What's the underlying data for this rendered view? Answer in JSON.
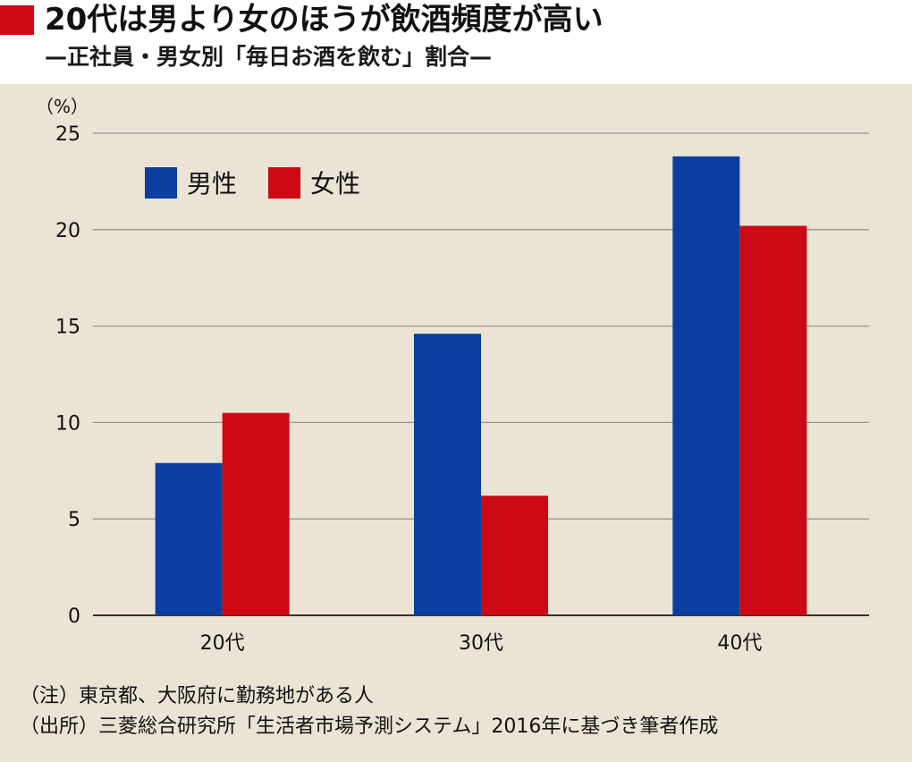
{
  "title": "20代は男より女のほうが飲酒頻度が高い",
  "subtitle": "—正社員・男女別「毎日お酒を飲む」割合—",
  "colors": {
    "accent": "#cc0a14",
    "male": "#0a3ea0",
    "female": "#cc0a14",
    "panel": "#ebe4d5",
    "grid": "#9a958c"
  },
  "chart_data": {
    "type": "bar",
    "title": "20代は男より女のほうが飲酒頻度が高い",
    "subtitle": "—正社員・男女別「毎日お酒を飲む」割合—",
    "ylabel": "（%）",
    "xlabel": "",
    "categories": [
      "20代",
      "30代",
      "40代"
    ],
    "series": [
      {
        "name": "男性",
        "values": [
          7.9,
          14.6,
          23.8
        ]
      },
      {
        "name": "女性",
        "values": [
          10.5,
          6.2,
          20.2
        ]
      }
    ],
    "ylim": [
      0,
      25
    ],
    "yticks": [
      "0",
      "5",
      "10",
      "15",
      "20",
      "25"
    ],
    "grid": true,
    "legend_position": "top-left"
  },
  "notes": [
    "（注）東京都、大阪府に勤務地がある人",
    "（出所）三菱総合研究所「生活者市場予測システム」2016年に基づき筆者作成"
  ]
}
